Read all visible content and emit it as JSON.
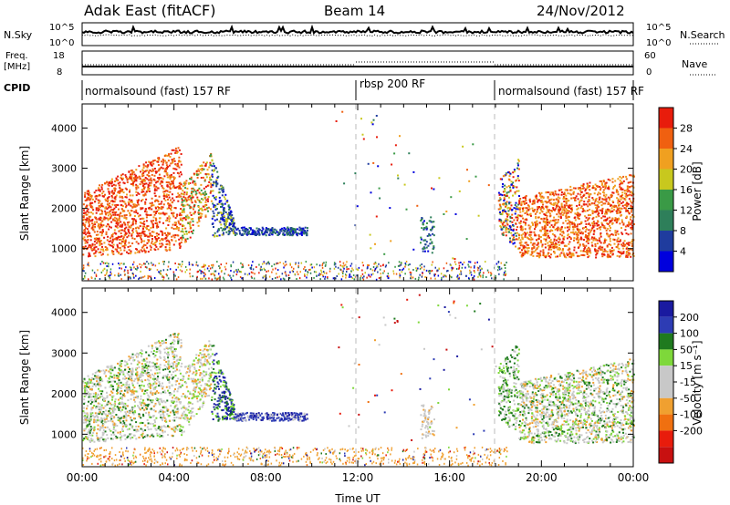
{
  "header": {
    "title": "Adak East (fitACF)",
    "beam": "Beam 14",
    "date": "24/Nov/2012"
  },
  "strips": {
    "nsky": {
      "label": "N.Sky",
      "ticks": [
        "10^5",
        "10^0"
      ],
      "right_ticks": [
        "10^5",
        "10^0"
      ],
      "right_label": "N.Search"
    },
    "freq": {
      "label_line1": "Freq.",
      "label_line2": "[MHz]",
      "ticks": [
        "18",
        "8"
      ],
      "right_ticks": [
        "60",
        "0"
      ],
      "right_label": "Nave"
    },
    "cpid": {
      "label": "CPID",
      "segments": [
        {
          "text": "normalsound (fast) 157 RF",
          "start": 0,
          "end": 12
        },
        {
          "text": "rbsp 200 RF",
          "start": 12,
          "end": 18
        },
        {
          "text": "normalsound (fast) 157 RF",
          "start": 18,
          "end": 24
        }
      ]
    }
  },
  "colors": {
    "power": [
      "#0000dd",
      "#1f3c9e",
      "#2e7f5a",
      "#3a9a46",
      "#c8c81e",
      "#f0a020",
      "#f06010",
      "#e81c0c"
    ],
    "velocity": [
      "#1a1aa0",
      "#2d3cb4",
      "#1f7a1f",
      "#7ed83a",
      "#c8c8c8",
      "#c8c8c8",
      "#f0a030",
      "#f07010",
      "#e81c0c",
      "#c81010"
    ]
  },
  "chart_data": [
    {
      "type": "heatmap",
      "name": "power",
      "ylabel": "Slant Range [km]",
      "y_ticks": [
        "1000",
        "2000",
        "3000",
        "4000"
      ],
      "ylim": [
        200,
        4600
      ],
      "xlim": [
        0,
        24
      ],
      "colorbar": {
        "label": "Power [dB]",
        "ticks": [
          "4",
          "8",
          "12",
          "16",
          "20",
          "24",
          "28"
        ],
        "range": [
          0,
          32
        ]
      }
    },
    {
      "type": "heatmap",
      "name": "velocity",
      "ylabel": "Slant Range [km]",
      "y_ticks": [
        "1000",
        "2000",
        "3000",
        "4000"
      ],
      "ylim": [
        200,
        4600
      ],
      "xlim": [
        0,
        24
      ],
      "colorbar": {
        "label": "Velocity [m s⁻¹]",
        "ticks": [
          "200",
          "100",
          "50",
          "15",
          "-15",
          "-50",
          "-100",
          "-200"
        ]
      },
      "x_ticks": [
        "00:00",
        "04:00",
        "08:00",
        "12:00",
        "16:00",
        "20:00",
        "00:00"
      ],
      "xlabel": "Time UT"
    }
  ]
}
